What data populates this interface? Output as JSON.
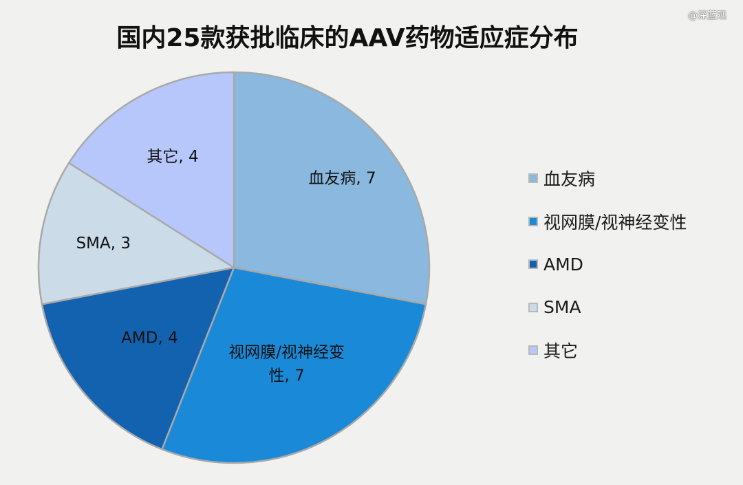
{
  "title": "国内25款获批临床的AAV药物适应症分布",
  "watermark": "@深蓝观",
  "chart_data": {
    "type": "pie",
    "title": "国内25款获批临床的AAV药物适应症分布",
    "slices": [
      {
        "name": "血友病",
        "value": 7,
        "color": "#8ab8de",
        "label_lines": [
          "血友病, 7"
        ]
      },
      {
        "name": "视网膜/视神经变性",
        "value": 7,
        "color": "#1a8ad8",
        "label_lines": [
          "视网膜/视神经变",
          "性, 7"
        ]
      },
      {
        "name": "AMD",
        "value": 4,
        "color": "#1262b0",
        "label_lines": [
          "AMD, 4"
        ]
      },
      {
        "name": "SMA",
        "value": 3,
        "color": "#cbdbe7",
        "label_lines": [
          "SMA, 3"
        ]
      },
      {
        "name": "其它",
        "value": 4,
        "color": "#b7c7fc",
        "label_lines": [
          "其它, 4"
        ]
      }
    ],
    "start_angle_deg": 0,
    "direction": "clockwise",
    "legend": {
      "position": "right",
      "entries": [
        "血友病",
        "视网膜/视神经变性",
        "AMD",
        "SMA",
        "其它"
      ]
    }
  }
}
